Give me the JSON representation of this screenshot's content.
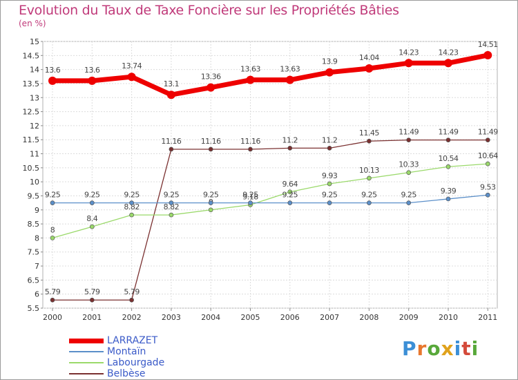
{
  "title": "Evolution du Taux de Taxe Foncière sur les Propriétés Bâties",
  "unit_label": "(en %)",
  "logo": {
    "text": "Proxiti",
    "letters": [
      "P",
      "r",
      "o",
      "x",
      "i",
      "t",
      "i"
    ],
    "colors": [
      "#3c8fd6",
      "#e8772e",
      "#58a83a",
      "#e0a21c",
      "#3c8fd6",
      "#d44a3a",
      "#58a83a"
    ]
  },
  "chart_data": {
    "type": "line",
    "title": "Evolution du Taux de Taxe Foncière sur les Propriétés Bâties",
    "ylabel": "(en %)",
    "xlabel": "",
    "x": [
      "2000",
      "2001",
      "2002",
      "2003",
      "2004",
      "2005",
      "2006",
      "2007",
      "2008",
      "2009",
      "2010",
      "2011"
    ],
    "ylim": [
      5.5,
      15
    ],
    "yticks": [
      "5.5",
      "6",
      "6.5",
      "7",
      "7.5",
      "8",
      "8.5",
      "9",
      "9.5",
      "10",
      "10.5",
      "11",
      "11.5",
      "12",
      "12.5",
      "13",
      "13.5",
      "14",
      "14.5",
      "15"
    ],
    "legend_position": "bottom-left",
    "series": [
      {
        "name": "LARRAZET",
        "color": "#ee0000",
        "width": 7,
        "marker": 6,
        "values": [
          13.6,
          13.6,
          13.74,
          13.1,
          13.36,
          13.63,
          13.63,
          13.9,
          14.04,
          14.23,
          14.23,
          14.51
        ],
        "labels": [
          "13.6",
          "13.6",
          "13.74",
          "13.1",
          "13.36",
          "13.63",
          "13.63",
          "13.9",
          "14.04",
          "14.23",
          "14.23",
          "14.51"
        ]
      },
      {
        "name": "Montaïn",
        "color": "#5b8fc9",
        "width": 1.3,
        "marker": 3,
        "values": [
          9.25,
          9.25,
          9.25,
          9.25,
          9.25,
          9.25,
          9.25,
          9.25,
          9.25,
          9.25,
          9.39,
          9.53
        ],
        "labels": [
          "9.25",
          "9.25",
          "9.25",
          "9.25",
          "9.25",
          "9.25",
          "9.25",
          "9.25",
          "9.25",
          "9.25",
          "9.39",
          "9.53"
        ]
      },
      {
        "name": "Labourgade",
        "color": "#9ad96a",
        "width": 1.3,
        "marker": 3,
        "values": [
          8,
          8.4,
          8.82,
          8.82,
          9,
          9.18,
          9.64,
          9.93,
          10.13,
          10.33,
          10.54,
          10.64
        ],
        "labels": [
          "8",
          "8.4",
          "8.82",
          "8.82",
          "9",
          "9.18",
          "9.64",
          "9.93",
          "10.13",
          "10.33",
          "10.54",
          "10.64"
        ]
      },
      {
        "name": "Belbèse",
        "color": "#7a3030",
        "width": 1.3,
        "marker": 3,
        "values": [
          5.79,
          5.79,
          5.79,
          11.16,
          11.16,
          11.16,
          11.2,
          11.2,
          11.45,
          11.49,
          11.49,
          11.49
        ],
        "labels": [
          "5.79",
          "5.79",
          "5.79",
          "11.16",
          "11.16",
          "11.16",
          "11.2",
          "11.2",
          "11.45",
          "11.49",
          "11.49",
          "11.49"
        ]
      }
    ]
  }
}
